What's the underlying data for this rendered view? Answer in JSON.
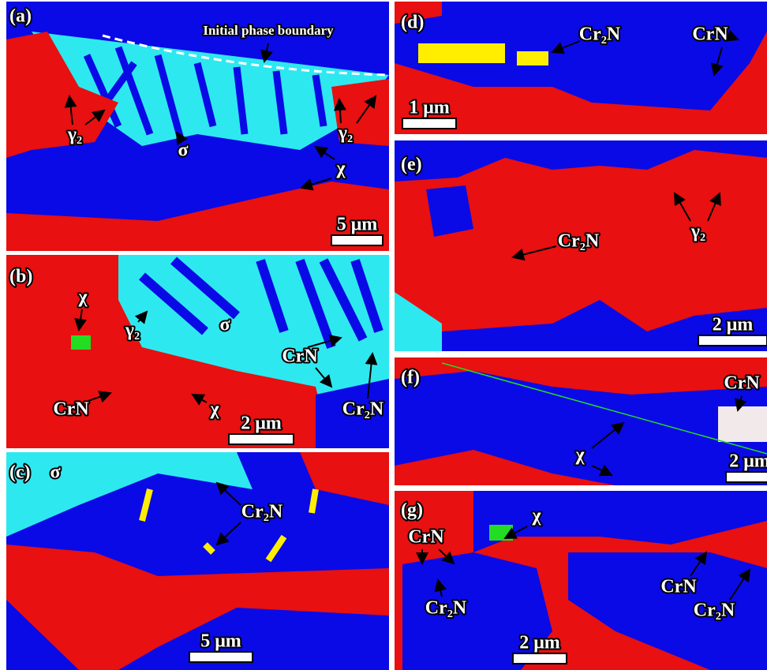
{
  "panels": [
    {
      "label": "(a)",
      "annotations": [
        "Initial phase boundary",
        "γ₂",
        "σ",
        "χ",
        "γ₂"
      ],
      "scale_bar": "5 μm"
    },
    {
      "label": "(b)",
      "annotations": [
        "χ",
        "γ₂",
        "σ",
        "CrN",
        "CrN",
        "χ",
        "Cr₂N"
      ],
      "scale_bar": "2 μm"
    },
    {
      "label": "(c)",
      "annotations": [
        "σ",
        "Cr₂N"
      ],
      "scale_bar": "5 μm"
    },
    {
      "label": "(d)",
      "annotations": [
        "Cr₂N",
        "CrN"
      ],
      "scale_bar": "1 μm"
    },
    {
      "label": "(e)",
      "annotations": [
        "Cr₂N",
        "γ₂"
      ],
      "scale_bar": "2 μm"
    },
    {
      "label": "(f)",
      "annotations": [
        "CrN",
        "χ"
      ],
      "scale_bar": "2 μm"
    },
    {
      "label": "(g)",
      "annotations": [
        "χ",
        "CrN",
        "Cr₂N",
        "CrN",
        "Cr₂N"
      ],
      "scale_bar": "2 μm"
    }
  ]
}
